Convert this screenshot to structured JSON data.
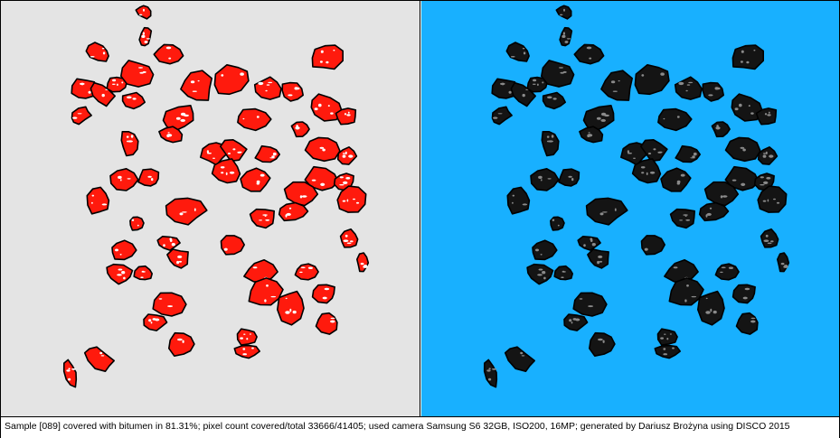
{
  "colors": {
    "left_background": "#e4e4e4",
    "right_background": "#18b0ff",
    "covered_fill": "#ff1a0d",
    "uncovered_fill": "#ffffff",
    "particle_dark": "#141414",
    "particle_highlight": "#8a8a8a",
    "outline": "#000000"
  },
  "caption": {
    "text": "Sample [089] covered with bitumen in 81.31%; pixel count covered/total 33666/41405; used camera Samsung S6 32GB, ISO200, 16MP; generated by Dariusz Brożyna using DISCO 2015"
  }
}
